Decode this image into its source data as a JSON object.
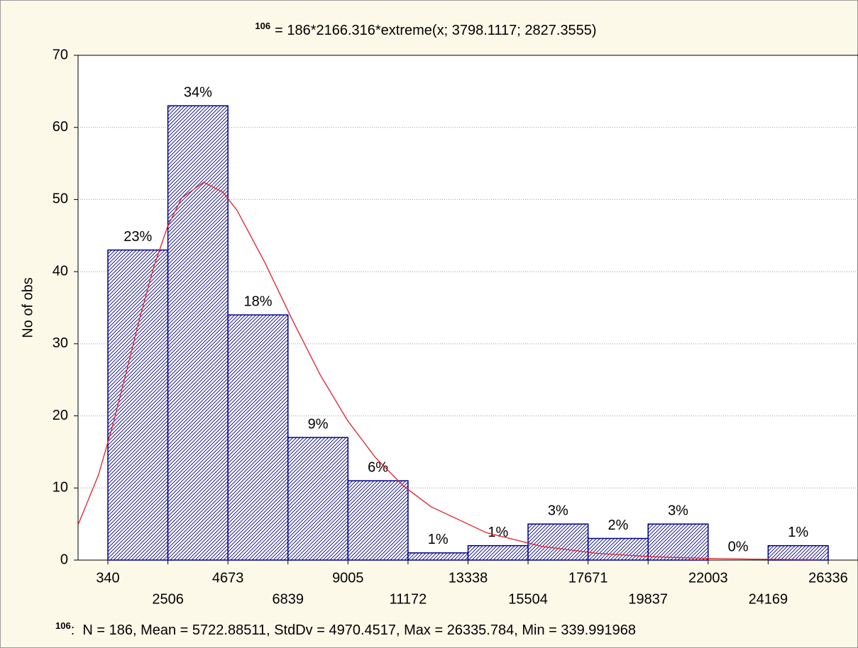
{
  "chart_data": {
    "type": "histogram",
    "title_sup": "106",
    "title": "= 186*2166.316*extreme(x; 3798.1117; 2827.3555)",
    "ylabel": "No of obs",
    "footnote_sup": "106",
    "footnote": ":  N = 186, Mean = 5722.88511, StdDv = 4970.4517, Max = 26335.784, Min = 339.991968",
    "bins": [
      340,
      2506,
      4673,
      6839,
      9005,
      11172,
      13338,
      15504,
      17671,
      19837,
      22003,
      24169,
      26336
    ],
    "values": [
      43,
      63,
      34,
      17,
      11,
      1,
      2,
      5,
      3,
      5,
      0,
      2
    ],
    "value_labels": [
      "23%",
      "34%",
      "18%",
      "9%",
      "6%",
      "1%",
      "1%",
      "3%",
      "2%",
      "3%",
      "0%",
      "1%"
    ],
    "color": "#00008b",
    "curve": {
      "color": "#e0202a",
      "x": [
        -736,
        0,
        500,
        1000,
        1500,
        2000,
        2500,
        3000,
        3798,
        4500,
        5000,
        6000,
        7000,
        8000,
        9000,
        10000,
        11000,
        12000,
        14000,
        16000,
        18000,
        20000,
        22000,
        24000,
        26000
      ],
      "values": [
        4.9,
        11.8,
        18.5,
        26.0,
        33.7,
        40.7,
        46.3,
        50.2,
        52.4,
        51.0,
        48.5,
        41.3,
        33.3,
        25.7,
        19.3,
        14.2,
        10.3,
        7.4,
        3.8,
        1.9,
        0.93,
        0.46,
        0.23,
        0.11,
        0.06
      ]
    },
    "xlim": [
      -736,
      27412
    ],
    "xticks": [
      340,
      2506,
      4673,
      6839,
      9005,
      11172,
      13338,
      15504,
      17671,
      19837,
      22003,
      24169,
      26336
    ],
    "ylim": [
      0,
      70
    ],
    "yticks": [
      0,
      10,
      20,
      30,
      40,
      50,
      60,
      70
    ],
    "grid": true
  }
}
